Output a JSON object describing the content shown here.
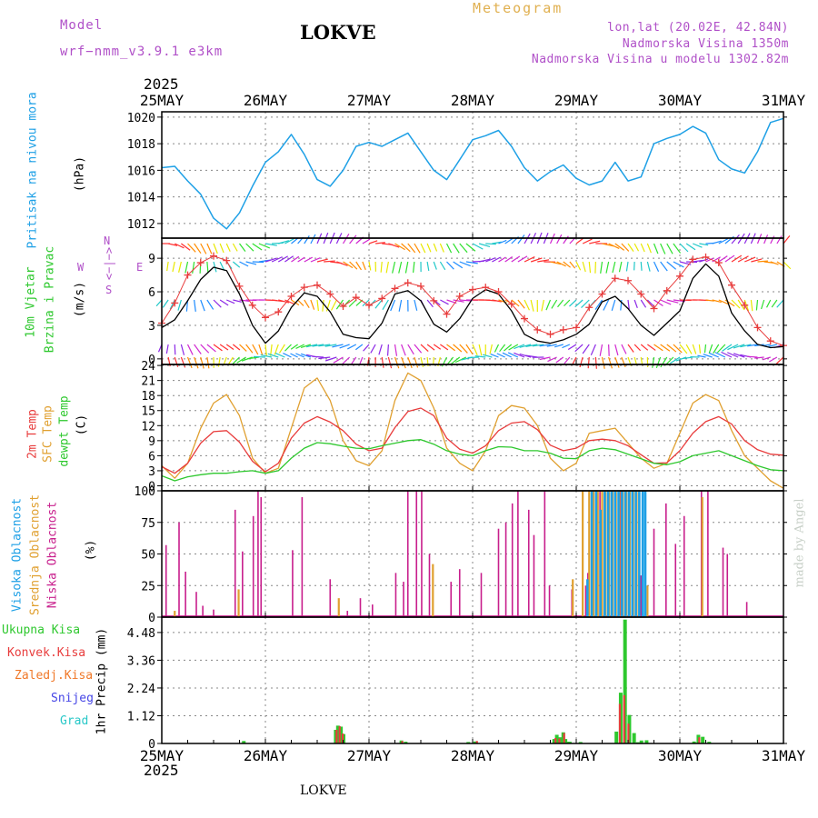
{
  "header": {
    "model_label": "Model",
    "model_name": "wrf−nmm_v3.9.1  e3km",
    "station": "LOKVE",
    "product": "Meteogram",
    "coords": "lon,lat (20.02E, 42.84N)",
    "elevation": "Nadmorska Visina 1350m",
    "model_elevation": "Nadmorska Visina u modelu 1302.82m"
  },
  "footer": {
    "station": "LOKVE",
    "credit": "made by Angel"
  },
  "colors": {
    "pressure": "#1ea0e6",
    "wind_speed": "#000000",
    "gust": "#e83c3c",
    "temp2m": "#e83c3c",
    "temp_sfc": "#e0a030",
    "dewpoint": "#2ec82e",
    "cloud_high": "#1ea0e6",
    "cloud_mid": "#e0a030",
    "cloud_low": "#c81e8c",
    "precip_total": "#2ec82e",
    "precip_conv": "#e83c3c",
    "precip_ice": "#f07828",
    "snow": "#4646e6",
    "graupel": "#28c8c8",
    "purple": "#b050c8"
  },
  "chart_data": [
    {
      "type": "line",
      "panel": "pressure",
      "title": "Pritisak na nivou mora",
      "ylabel": "(hPa)",
      "yticks": [
        "1012",
        "1014",
        "1016",
        "1018",
        "1020"
      ],
      "ylim": [
        1010.9,
        1020.4
      ],
      "x_hours": [
        0,
        3,
        6,
        9,
        12,
        15,
        18,
        21,
        24,
        27,
        30,
        33,
        36,
        39,
        42,
        45,
        48,
        51,
        54,
        57,
        60,
        63,
        66,
        69,
        72,
        75,
        78,
        81,
        84,
        87,
        90,
        93,
        96,
        99,
        102,
        105,
        108,
        111,
        114,
        117,
        120,
        123,
        126,
        129,
        132,
        135,
        138,
        141,
        144
      ],
      "series": [
        {
          "name": "Pritisak na nivou mora",
          "values": [
            1016.2,
            1016.3,
            1015.2,
            1014.2,
            1012.4,
            1011.6,
            1012.8,
            1014.8,
            1016.6,
            1017.4,
            1018.7,
            1017.2,
            1015.3,
            1014.8,
            1016.0,
            1017.8,
            1018.1,
            1017.8,
            1018.3,
            1018.8,
            1017.4,
            1016.0,
            1015.3,
            1016.8,
            1018.3,
            1018.6,
            1019.0,
            1017.8,
            1016.2,
            1015.2,
            1015.9,
            1016.4,
            1015.4,
            1014.9,
            1015.2,
            1016.6,
            1015.2,
            1015.5,
            1018.0,
            1018.4,
            1018.7,
            1019.3,
            1018.8,
            1016.8,
            1016.1,
            1015.8,
            1017.4,
            1019.6,
            1019.9
          ]
        }
      ]
    },
    {
      "type": "line",
      "panel": "wind",
      "title": "10m Vjetar",
      "subtitle": "Brzina i Pravac",
      "ylabel": "(m/s)",
      "yticks": [
        "0",
        "3",
        "6",
        "9"
      ],
      "ylim": [
        -0.5,
        10.8
      ],
      "legend_compass": [
        "N",
        "<−|−>",
        "S",
        "W",
        "E"
      ],
      "x_hours": [
        0,
        3,
        6,
        9,
        12,
        15,
        18,
        21,
        24,
        27,
        30,
        33,
        36,
        39,
        42,
        45,
        48,
        51,
        54,
        57,
        60,
        63,
        66,
        69,
        72,
        75,
        78,
        81,
        84,
        87,
        90,
        93,
        96,
        99,
        102,
        105,
        108,
        111,
        114,
        117,
        120,
        123,
        126,
        129,
        132,
        135,
        138,
        141,
        144
      ],
      "series": [
        {
          "name": "Brzina (m/s)",
          "values": [
            2.8,
            3.5,
            5.2,
            7.1,
            8.2,
            7.9,
            5.8,
            3.0,
            1.4,
            2.5,
            4.6,
            5.9,
            5.6,
            4.2,
            2.2,
            1.9,
            1.8,
            3.2,
            5.8,
            6.1,
            5.2,
            3.1,
            2.4,
            3.6,
            5.4,
            6.2,
            5.8,
            4.3,
            2.2,
            1.6,
            1.4,
            1.7,
            2.2,
            3.1,
            5.1,
            5.6,
            4.5,
            3.0,
            2.1,
            3.2,
            4.3,
            7.2,
            8.5,
            7.4,
            4.1,
            2.5,
            1.3,
            1.0,
            1.1
          ]
        },
        {
          "name": "Udari",
          "values": [
            3.2,
            5.0,
            7.5,
            8.6,
            9.2,
            8.8,
            6.5,
            4.8,
            3.7,
            4.2,
            5.6,
            6.4,
            6.6,
            5.8,
            4.7,
            5.5,
            4.8,
            5.4,
            6.3,
            6.8,
            6.5,
            5.2,
            4.0,
            5.6,
            6.2,
            6.4,
            6.0,
            4.9,
            3.6,
            2.6,
            2.2,
            2.6,
            2.8,
            4.6,
            5.8,
            7.2,
            7.0,
            5.8,
            4.5,
            6.1,
            7.4,
            8.9,
            9.1,
            8.6,
            6.6,
            4.8,
            2.8,
            1.6,
            1.2
          ]
        }
      ]
    },
    {
      "type": "line",
      "panel": "temperature",
      "titles": [
        "2m Temp",
        "SFC Temp",
        "dewpt Temp"
      ],
      "ylabel": "(C)",
      "yticks": [
        "0",
        "3",
        "6",
        "9",
        "12",
        "15",
        "18",
        "21",
        "24"
      ],
      "ylim": [
        -1.0,
        24.2
      ],
      "x_hours": [
        0,
        3,
        6,
        9,
        12,
        15,
        18,
        21,
        24,
        27,
        30,
        33,
        36,
        39,
        42,
        45,
        48,
        51,
        54,
        57,
        60,
        63,
        66,
        69,
        72,
        75,
        78,
        81,
        84,
        87,
        90,
        93,
        96,
        99,
        102,
        105,
        108,
        111,
        114,
        117,
        120,
        123,
        126,
        129,
        132,
        135,
        138,
        141,
        144
      ],
      "series": [
        {
          "name": "2m Temp",
          "values": [
            3.8,
            2.5,
            4.5,
            8.5,
            10.8,
            11.0,
            8.7,
            4.9,
            2.8,
            4.5,
            9.5,
            12.5,
            13.8,
            12.7,
            11.0,
            8.3,
            7.0,
            7.5,
            11.6,
            14.8,
            15.5,
            14.0,
            9.5,
            7.3,
            6.5,
            8.0,
            11.0,
            12.5,
            12.8,
            11.2,
            8.1,
            7.0,
            7.5,
            9.0,
            9.3,
            9.0,
            8.0,
            6.2,
            4.5,
            4.6,
            7.0,
            10.5,
            12.8,
            13.8,
            12.3,
            9.0,
            7.2,
            6.3,
            6.1
          ]
        },
        {
          "name": "SFC Temp",
          "values": [
            4.0,
            1.5,
            4.5,
            11.5,
            16.5,
            18.2,
            14.0,
            5.5,
            2.5,
            3.5,
            11.5,
            19.5,
            21.5,
            17.0,
            9.0,
            5.0,
            4.0,
            7.0,
            17.0,
            22.5,
            21.0,
            15.5,
            7.5,
            4.5,
            3.0,
            7.0,
            14.0,
            16.0,
            15.5,
            12.0,
            5.5,
            3.0,
            4.5,
            10.5,
            11.0,
            11.5,
            8.5,
            5.5,
            3.5,
            4.5,
            10.5,
            16.5,
            18.2,
            17.0,
            11.0,
            6.0,
            3.5,
            1.0,
            -0.5
          ]
        },
        {
          "name": "dewpt Temp",
          "values": [
            2.0,
            1.0,
            1.8,
            2.2,
            2.5,
            2.5,
            2.8,
            3.0,
            2.5,
            3.0,
            5.5,
            7.5,
            8.6,
            8.4,
            7.9,
            7.5,
            7.4,
            8.0,
            8.5,
            9.0,
            9.2,
            8.3,
            7.0,
            6.3,
            6.0,
            7.0,
            7.8,
            7.7,
            7.0,
            7.0,
            6.5,
            5.5,
            5.4,
            7.0,
            7.5,
            7.2,
            6.3,
            5.4,
            4.5,
            4.2,
            4.8,
            6.0,
            6.5,
            7.0,
            6.0,
            5.0,
            4.0,
            3.2,
            3.0
          ]
        }
      ]
    },
    {
      "type": "bar",
      "panel": "cloud",
      "titles": [
        "Visoka Oblacnost",
        "Srednja Oblacnost",
        "Niska Oblacnost"
      ],
      "ylabel": "(%)",
      "yticks": [
        "0",
        "25",
        "50",
        "75",
        "100"
      ],
      "ylim": [
        0,
        100
      ],
      "series": [
        {
          "name": "Niska Oblacnost",
          "x_hours": [
            1,
            4,
            5.5,
            8,
            9.5,
            12,
            17,
            18.7,
            21.2,
            22.3,
            23,
            30.3,
            32.5,
            39,
            43,
            46,
            48.8,
            54.2,
            56,
            57,
            59,
            60.2,
            62,
            67,
            69,
            74,
            78,
            79.7,
            81.2,
            82.5,
            85,
            86.2,
            88.7,
            89.8,
            95,
            98.2,
            98.7,
            99.8,
            100.7,
            101.5,
            104.2,
            106.3,
            109,
            111,
            114,
            116.8,
            119,
            121,
            125,
            126.5,
            130,
            131,
            135.5
          ],
          "values": [
            57,
            75,
            36,
            20,
            9,
            6,
            85,
            52,
            80,
            100,
            95,
            53,
            95,
            30,
            5,
            15,
            10,
            35,
            28,
            100,
            100,
            100,
            50,
            28,
            38,
            35,
            70,
            75,
            90,
            100,
            85,
            65,
            100,
            25,
            22,
            25,
            35,
            55,
            90,
            100,
            85,
            100,
            60,
            33,
            70,
            90,
            58,
            80,
            100,
            100,
            55,
            50,
            12
          ]
        },
        {
          "name": "Srednja Oblacnost",
          "x_hours": [
            3,
            17.8,
            41,
            62.8,
            95.2,
            97.5,
            99,
            100,
            101,
            102,
            102.8,
            103.6,
            104.4,
            105.2,
            106,
            106.8,
            107.6,
            108.4,
            109.2,
            110,
            112.5,
            125.2
          ],
          "values": [
            5,
            22,
            15,
            42,
            30,
            100,
            100,
            100,
            100,
            100,
            100,
            100,
            100,
            100,
            100,
            100,
            100,
            100,
            100,
            100,
            25,
            95
          ]
        },
        {
          "name": "Visoka Oblacnost",
          "x_hours": [
            98.6,
            99.6,
            100.6,
            101.6,
            102.6,
            103.4,
            104.2,
            105,
            105.8,
            106.6,
            107.4,
            108.2,
            109.0,
            109.8,
            110.6,
            111.4,
            112.0
          ],
          "values": [
            30,
            100,
            100,
            85,
            100,
            100,
            100,
            100,
            100,
            100,
            100,
            100,
            100,
            100,
            100,
            100,
            100
          ]
        }
      ]
    },
    {
      "type": "bar",
      "panel": "precip",
      "titles": [
        "Ukupna Kisa",
        "Konvek.Kisa",
        "Zaledj.Kisa",
        "Snijeg",
        "Grad"
      ],
      "ylabel": "1hr Precip (mm)",
      "yticks": [
        "0",
        "1.12",
        "2.24",
        "3.36",
        "4.48"
      ],
      "ylim": [
        0,
        5.1
      ],
      "series": [
        {
          "name": "Ukupna Kisa",
          "x_hours": [
            19,
            40.3,
            40.8,
            41.5,
            42.1,
            55.5,
            56.5,
            71,
            72.6,
            90.9,
            91.5,
            92.3,
            93,
            93.5,
            94,
            94.5,
            97,
            105.3,
            106.3,
            107.3,
            108.3,
            109.4,
            110.3,
            111.1,
            112.3,
            123.3,
            124.3,
            125.3,
            126.8
          ],
          "values": [
            0.1,
            0.55,
            0.72,
            0.68,
            0.38,
            0.12,
            0.07,
            0.06,
            0.08,
            0.18,
            0.35,
            0.25,
            0.45,
            0.18,
            0.07,
            0.07,
            0.06,
            0.48,
            2.05,
            5.0,
            1.15,
            0.42,
            0.05,
            0.12,
            0.13,
            0.08,
            0.35,
            0.27,
            0.07
          ]
        },
        {
          "name": "Konvek.Kisa",
          "x_hours": [
            40.5,
            41.2,
            41.9,
            55.7,
            73,
            91.2,
            92.1,
            93.2,
            106.1,
            107.1,
            108.1,
            124.5
          ],
          "values": [
            0.55,
            0.7,
            0.4,
            0.1,
            0.1,
            0.22,
            0.2,
            0.42,
            1.6,
            1.95,
            0.8,
            0.25
          ]
        }
      ]
    }
  ],
  "axis": {
    "year": "2025",
    "day_labels": [
      "25MAY",
      "26MAY",
      "27MAY",
      "28MAY",
      "29MAY",
      "30MAY",
      "31MAY"
    ]
  }
}
